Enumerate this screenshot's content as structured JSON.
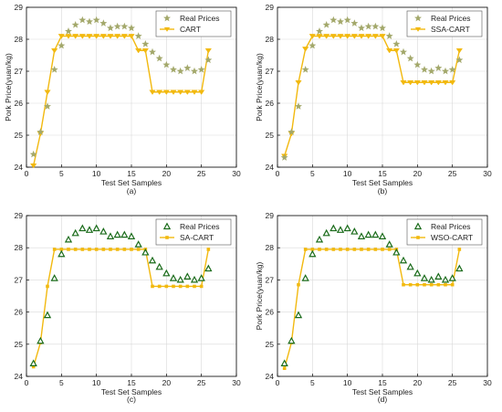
{
  "colors": {
    "real_star": "#a3a86b",
    "real_triangle_stroke": "#1a6b1a",
    "model": "#f2b90f",
    "axis": "#000000",
    "grid": "#d9d9d9"
  },
  "chart_data": [
    {
      "type": "line",
      "caption": "(a)",
      "xlabel": "Test Set Samples",
      "ylabel": "Pork Price(yuan/kg)",
      "xlim": [
        0,
        30
      ],
      "ylim": [
        24,
        29
      ],
      "xticks": [
        0,
        5,
        10,
        15,
        20,
        25,
        30
      ],
      "yticks": [
        24,
        25,
        26,
        27,
        28,
        29
      ],
      "grid": true,
      "legend_position": "top-right",
      "real_marker": "star",
      "series": [
        {
          "name": "Real Prices",
          "style": "markers",
          "x": [
            1,
            2,
            3,
            4,
            5,
            6,
            7,
            8,
            9,
            10,
            11,
            12,
            13,
            14,
            15,
            16,
            17,
            18,
            19,
            20,
            21,
            22,
            23,
            24,
            25,
            26
          ],
          "y": [
            24.4,
            25.1,
            25.9,
            27.05,
            27.8,
            28.25,
            28.45,
            28.6,
            28.55,
            28.6,
            28.5,
            28.35,
            28.4,
            28.4,
            28.35,
            28.1,
            27.85,
            27.6,
            27.4,
            27.2,
            27.05,
            27.0,
            27.1,
            27.0,
            27.05,
            27.35
          ]
        },
        {
          "name": "CART",
          "style": "line",
          "x": [
            1,
            2,
            3,
            4,
            5,
            6,
            7,
            8,
            9,
            10,
            11,
            12,
            13,
            14,
            15,
            16,
            17,
            18,
            19,
            20,
            21,
            22,
            23,
            24,
            25,
            26
          ],
          "y": [
            24.05,
            25.05,
            26.35,
            27.65,
            28.1,
            28.1,
            28.1,
            28.1,
            28.1,
            28.1,
            28.1,
            28.1,
            28.1,
            28.1,
            28.1,
            27.65,
            27.65,
            26.35,
            26.35,
            26.35,
            26.35,
            26.35,
            26.35,
            26.35,
            26.35,
            27.65
          ]
        }
      ]
    },
    {
      "type": "line",
      "caption": "(b)",
      "xlabel": "Test Set Samples",
      "ylabel": "Pork Price(yuan/kg)",
      "xlim": [
        0,
        30
      ],
      "ylim": [
        24,
        29
      ],
      "xticks": [
        0,
        5,
        10,
        15,
        20,
        25,
        30
      ],
      "yticks": [
        24,
        25,
        26,
        27,
        28,
        29
      ],
      "grid": true,
      "legend_position": "top-right",
      "real_marker": "star",
      "series": [
        {
          "name": "Real Prices",
          "style": "markers",
          "x": [
            1,
            2,
            3,
            4,
            5,
            6,
            7,
            8,
            9,
            10,
            11,
            12,
            13,
            14,
            15,
            16,
            17,
            18,
            19,
            20,
            21,
            22,
            23,
            24,
            25,
            26
          ],
          "y": [
            24.3,
            25.1,
            25.9,
            27.05,
            27.8,
            28.25,
            28.45,
            28.6,
            28.55,
            28.6,
            28.5,
            28.35,
            28.4,
            28.4,
            28.35,
            28.1,
            27.85,
            27.6,
            27.4,
            27.2,
            27.05,
            27.0,
            27.1,
            27.0,
            27.05,
            27.35
          ]
        },
        {
          "name": "SSA-CART",
          "style": "line",
          "x": [
            1,
            2,
            3,
            4,
            5,
            6,
            7,
            8,
            9,
            10,
            11,
            12,
            13,
            14,
            15,
            16,
            17,
            18,
            19,
            20,
            21,
            22,
            23,
            24,
            25,
            26
          ],
          "y": [
            24.35,
            25.05,
            26.65,
            27.7,
            28.1,
            28.1,
            28.1,
            28.1,
            28.1,
            28.1,
            28.1,
            28.1,
            28.1,
            28.1,
            28.1,
            27.65,
            27.65,
            26.65,
            26.65,
            26.65,
            26.65,
            26.65,
            26.65,
            26.65,
            26.65,
            27.65
          ]
        }
      ]
    },
    {
      "type": "line",
      "caption": "(c)",
      "xlabel": "Test Set Samples",
      "ylabel": "",
      "xlim": [
        0,
        30
      ],
      "ylim": [
        24,
        29
      ],
      "xticks": [
        0,
        5,
        10,
        15,
        20,
        25,
        30
      ],
      "yticks": [
        24,
        25,
        26,
        27,
        28,
        29
      ],
      "grid": true,
      "legend_position": "top-right",
      "real_marker": "triangle",
      "series": [
        {
          "name": "Real Prices",
          "style": "markers",
          "x": [
            1,
            2,
            3,
            4,
            5,
            6,
            7,
            8,
            9,
            10,
            11,
            12,
            13,
            14,
            15,
            16,
            17,
            18,
            19,
            20,
            21,
            22,
            23,
            24,
            25,
            26
          ],
          "y": [
            24.4,
            25.1,
            25.9,
            27.05,
            27.8,
            28.25,
            28.45,
            28.6,
            28.55,
            28.6,
            28.5,
            28.35,
            28.4,
            28.4,
            28.35,
            28.1,
            27.85,
            27.6,
            27.4,
            27.2,
            27.05,
            27.0,
            27.1,
            27.0,
            27.05,
            27.35
          ]
        },
        {
          "name": "SA-CART",
          "style": "line",
          "x": [
            1,
            2,
            3,
            4,
            5,
            6,
            7,
            8,
            9,
            10,
            11,
            12,
            13,
            14,
            15,
            16,
            17,
            18,
            19,
            20,
            21,
            22,
            23,
            24,
            25,
            26
          ],
          "y": [
            24.3,
            25.05,
            26.8,
            27.95,
            27.95,
            27.95,
            27.95,
            27.95,
            27.95,
            27.95,
            27.95,
            27.95,
            27.95,
            27.95,
            27.95,
            27.95,
            27.95,
            26.8,
            26.8,
            26.8,
            26.8,
            26.8,
            26.8,
            26.8,
            26.8,
            27.95
          ]
        }
      ]
    },
    {
      "type": "line",
      "caption": "(d)",
      "xlabel": "Test Set Samples",
      "ylabel": "Pork Price(yuan/kg)",
      "xlim": [
        0,
        30
      ],
      "ylim": [
        24,
        29
      ],
      "xticks": [
        0,
        5,
        10,
        15,
        20,
        25,
        30
      ],
      "yticks": [
        24,
        25,
        26,
        27,
        28,
        29
      ],
      "grid": true,
      "legend_position": "top-right",
      "real_marker": "triangle",
      "series": [
        {
          "name": "Real Prices",
          "style": "markers",
          "x": [
            1,
            2,
            3,
            4,
            5,
            6,
            7,
            8,
            9,
            10,
            11,
            12,
            13,
            14,
            15,
            16,
            17,
            18,
            19,
            20,
            21,
            22,
            23,
            24,
            25,
            26
          ],
          "y": [
            24.4,
            25.1,
            25.9,
            27.05,
            27.8,
            28.25,
            28.45,
            28.6,
            28.55,
            28.6,
            28.5,
            28.35,
            28.4,
            28.4,
            28.35,
            28.1,
            27.85,
            27.6,
            27.4,
            27.2,
            27.05,
            27.0,
            27.1,
            27.0,
            27.05,
            27.35
          ]
        },
        {
          "name": "WSO-CART",
          "style": "line",
          "x": [
            1,
            2,
            3,
            4,
            5,
            6,
            7,
            8,
            9,
            10,
            11,
            12,
            13,
            14,
            15,
            16,
            17,
            18,
            19,
            20,
            21,
            22,
            23,
            24,
            25,
            26
          ],
          "y": [
            24.25,
            25.05,
            26.85,
            27.95,
            27.95,
            27.95,
            27.95,
            27.95,
            27.95,
            27.95,
            27.95,
            27.95,
            27.95,
            27.95,
            27.95,
            27.95,
            27.95,
            26.85,
            26.85,
            26.85,
            26.85,
            26.85,
            26.85,
            26.85,
            26.85,
            27.95
          ]
        }
      ]
    }
  ]
}
